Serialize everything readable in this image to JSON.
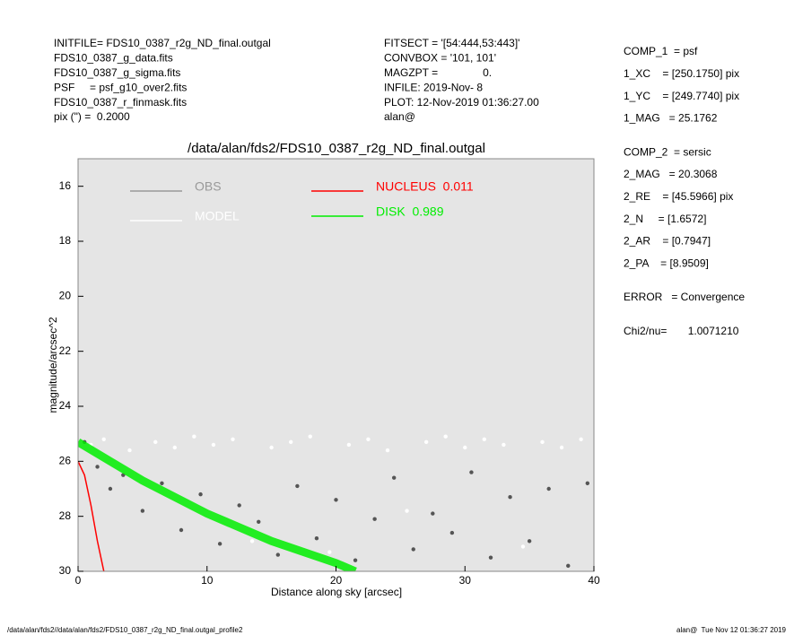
{
  "header": {
    "left": [
      "INITFILE= FDS10_0387_r2g_ND_final.outgal",
      "FDS10_0387_g_data.fits",
      "FDS10_0387_g_sigma.fits",
      "PSF     = psf_g10_over2.fits",
      "FDS10_0387_r_finmask.fits",
      "pix (\") =  0.2000"
    ],
    "middle": [
      "FITSECT = '[54:444,53:443]'",
      "CONVBOX = '101, 101'",
      "MAGZPT =               0.",
      "INFILE: 2019-Nov- 8",
      "PLOT: 12-Nov-2019 01:36:27.00",
      "alan@"
    ]
  },
  "panel": [
    [
      "COMP_1  = psf",
      "1_XC    = [250.1750] pix",
      "1_YC    = [249.7740] pix",
      "1_MAG   = 25.1762"
    ],
    [
      "COMP_2  = sersic",
      "2_MAG   = 20.3068",
      "2_RE    = [45.5966] pix",
      "2_N     = [1.6572]",
      "2_AR    = [0.7947]",
      "2_PA    = [8.9509]"
    ],
    [
      "ERROR   = Convergence"
    ],
    [
      "Chi2/nu=       1.0071210"
    ]
  ],
  "footer": {
    "left": "/data/alan/fds2//data/alan/fds2/FDS10_0387_r2g_ND_final.outgal_profile2",
    "right": "alan@  Tue Nov 12 01:36:27 2019"
  },
  "chart_data": {
    "type": "scatter",
    "title": "/data/alan/fds2/FDS10_0387_r2g_ND_final.outgal",
    "x_label": "Distance along sky [arcsec]",
    "y_label": "magnitude/arcsec^2",
    "xlim": [
      0,
      40
    ],
    "ylim": [
      30,
      15
    ],
    "xticks": [
      0,
      10,
      20,
      30,
      40
    ],
    "yticks": [
      16,
      18,
      20,
      22,
      24,
      26,
      28,
      30
    ],
    "series": [
      {
        "name": "OBS",
        "color": "#555555",
        "marker": "points",
        "x": [
          0.5,
          1.5,
          2.5,
          3.5,
          5,
          6.5,
          8,
          9.5,
          11,
          12.5,
          14,
          15.5,
          17,
          18.5,
          20,
          21.5,
          23,
          24.5,
          26,
          27.5,
          29,
          30.5,
          32,
          33.5,
          35,
          36.5,
          38,
          39.5
        ],
        "values": [
          25.3,
          26.2,
          27.0,
          26.5,
          27.8,
          26.8,
          28.5,
          27.2,
          29.0,
          27.6,
          28.2,
          29.4,
          26.9,
          28.8,
          27.4,
          29.6,
          28.1,
          26.6,
          29.2,
          27.9,
          28.6,
          26.4,
          29.5,
          27.3,
          28.9,
          27.0,
          29.8,
          26.8
        ]
      },
      {
        "name": "MODEL",
        "color": "#ffffff",
        "marker": "points",
        "x": [
          1,
          2,
          4,
          6,
          7.5,
          9,
          10.5,
          12,
          13.5,
          15,
          16.5,
          18,
          19.5,
          21,
          22.5,
          24,
          25.5,
          27,
          28.5,
          30,
          31.5,
          33,
          34.5,
          36,
          37.5,
          39
        ],
        "values": [
          25.4,
          25.2,
          25.6,
          25.3,
          25.5,
          25.1,
          25.4,
          25.2,
          28.9,
          25.5,
          25.3,
          25.1,
          29.3,
          25.4,
          25.2,
          25.6,
          27.8,
          25.3,
          25.1,
          25.5,
          25.2,
          25.4,
          29.1,
          25.3,
          25.5,
          25.2
        ]
      },
      {
        "name": "NUCLEUS  0.011",
        "color": "#ff0000",
        "marker": "line",
        "x": [
          0,
          0.5,
          1,
          1.5,
          2
        ],
        "values": [
          26,
          26.5,
          27.6,
          28.9,
          30
        ]
      },
      {
        "name": "DISK  0.989",
        "color": "#00ee00",
        "marker": "band",
        "x": [
          0,
          5,
          10,
          15,
          20,
          21.5
        ],
        "values": [
          25.3,
          26.7,
          27.9,
          28.9,
          29.7,
          30
        ]
      }
    ]
  }
}
